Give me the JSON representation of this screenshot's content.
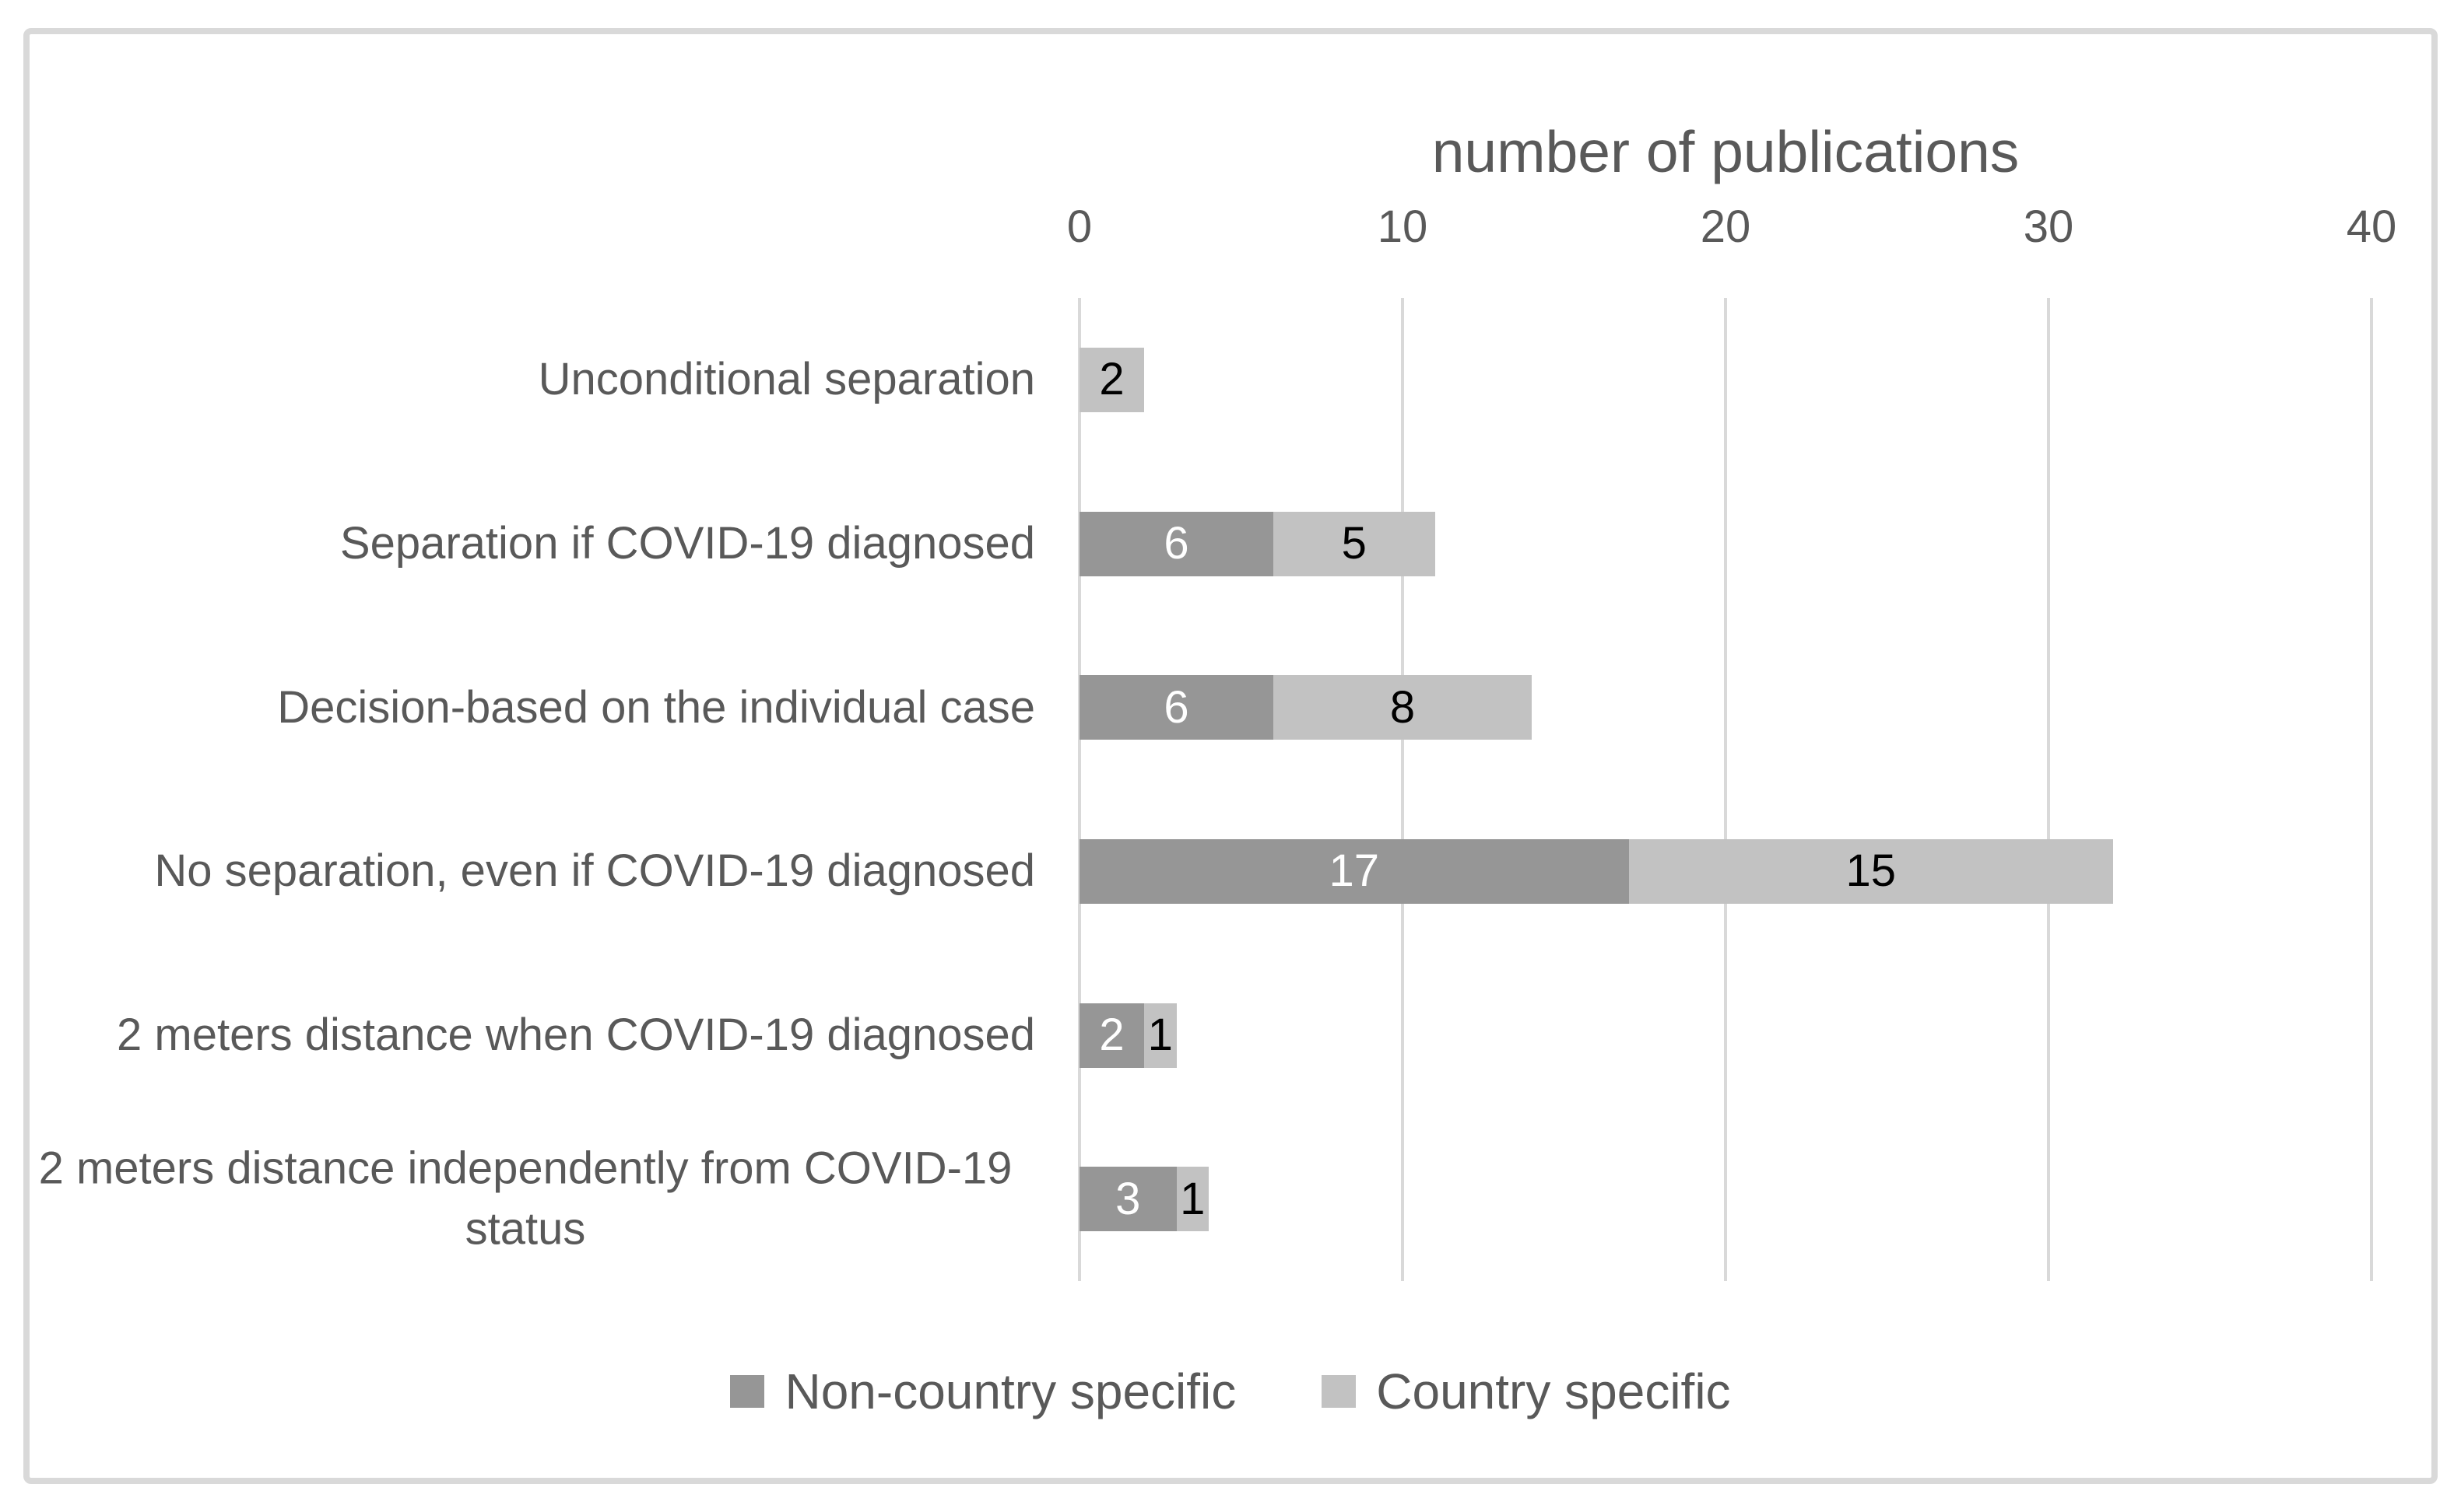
{
  "chart_data": {
    "type": "bar",
    "orientation": "horizontal-stacked",
    "title": "number of publications",
    "categories": [
      "Unconditional separation",
      "Separation if  COVID-19 diagnosed",
      "Decision-based on the individual case",
      "No separation, even if COVID-19 diagnosed",
      "2 meters distance when COVID-19 diagnosed",
      "2 meters distance independently from  COVID-19 status"
    ],
    "series": [
      {
        "name": "Non-country specific",
        "color": "#969696",
        "label_color": "#ffffff",
        "values": [
          0,
          6,
          6,
          17,
          2,
          3
        ]
      },
      {
        "name": "Country specific",
        "color": "#c2c2c2",
        "label_color": "#000000",
        "values": [
          2,
          5,
          8,
          15,
          1,
          1
        ]
      }
    ],
    "x_axis": {
      "label": "number of publications",
      "min": 0,
      "max": 40,
      "ticks": [
        0,
        10,
        20,
        30,
        40
      ]
    },
    "grid": true,
    "legend_position": "bottom",
    "colors": {
      "text": "#595959",
      "gridline": "#d9d9d9",
      "frame_border": "#d9d9d9",
      "background": "#ffffff"
    }
  }
}
